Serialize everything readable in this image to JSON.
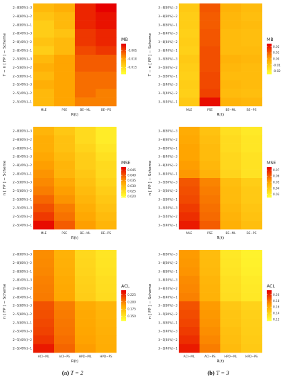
{
  "captions": [
    {
      "label": "(a)",
      "text": "T = 2"
    },
    {
      "label": "(b)",
      "text": "T = 3"
    }
  ],
  "colors": {
    "low": "#ffff33",
    "mid": "#ffa500",
    "high": "#e60000",
    "grid": "#ffffff"
  },
  "chart_data": [
    {
      "type": "heatmap",
      "panel": "a-MB",
      "legend_title": "MB",
      "xlabel": "R(t)",
      "ylabel": "T − n [ FP ] − Scheme",
      "x": [
        "MLE",
        "PSE",
        "BE−ML",
        "BE−PS"
      ],
      "y": [
        "2−8[80%]−3",
        "2−8[80%]−2",
        "2−8[80%]−1",
        "2−8[40%]−3",
        "2−8[40%]−2",
        "2−8[40%]−1",
        "2−5[80%]−3",
        "2−5[80%]−2",
        "2−5[80%]−1",
        "2−5[40%]−3",
        "2−5[40%]−2",
        "2−5[40%]−1"
      ],
      "legend_ticks": [
        -0.005,
        -0.01,
        -0.015
      ],
      "legend_tick_labels": [
        "-0.005",
        "-0.010",
        "-0.015"
      ],
      "range": [
        -0.019,
        -0.001
      ],
      "values": [
        [
          -0.012,
          -0.011,
          -0.003,
          -0.001
        ],
        [
          -0.013,
          -0.012,
          -0.003,
          -0.002
        ],
        [
          -0.014,
          -0.012,
          -0.003,
          -0.002
        ],
        [
          -0.014,
          -0.013,
          -0.004,
          -0.003
        ],
        [
          -0.013,
          -0.012,
          -0.004,
          -0.003
        ],
        [
          -0.014,
          -0.012,
          -0.005,
          -0.004
        ],
        [
          -0.012,
          -0.01,
          -0.006,
          -0.006
        ],
        [
          -0.011,
          -0.01,
          -0.006,
          -0.006
        ],
        [
          -0.012,
          -0.01,
          -0.007,
          -0.007
        ],
        [
          -0.011,
          -0.01,
          -0.007,
          -0.007
        ],
        [
          -0.012,
          -0.01,
          -0.007,
          -0.008
        ],
        [
          -0.012,
          -0.01,
          -0.008,
          -0.008
        ]
      ]
    },
    {
      "type": "heatmap",
      "panel": "b-MB",
      "legend_title": "MB",
      "xlabel": "R(t)",
      "ylabel": "T − n [ FP ] − Scheme",
      "x": [
        "MLE",
        "PSE",
        "BE−ML",
        "BE−PS"
      ],
      "y": [
        "3−8[80%]−3",
        "3−8[80%]−2",
        "3−8[80%]−1",
        "3−8[40%]−3",
        "3−8[40%]−2",
        "3−8[40%]−1",
        "3−5[80%]−3",
        "3−5[80%]−2",
        "3−5[80%]−1",
        "3−5[40%]−3",
        "3−5[40%]−2",
        "3−5[40%]−1"
      ],
      "legend_ticks": [
        0.02,
        0.01,
        0.0,
        -0.01,
        -0.02
      ],
      "legend_tick_labels": [
        "0.02",
        "0.01",
        "0.00",
        "-0.01",
        "-0.02"
      ],
      "range": [
        -0.025,
        0.025
      ],
      "values": [
        [
          -0.01,
          0.012,
          -0.004,
          -0.006
        ],
        [
          -0.011,
          0.011,
          -0.005,
          -0.007
        ],
        [
          -0.011,
          0.011,
          -0.005,
          -0.006
        ],
        [
          -0.012,
          0.012,
          -0.006,
          -0.007
        ],
        [
          -0.011,
          0.012,
          -0.006,
          -0.007
        ],
        [
          -0.012,
          0.013,
          -0.006,
          -0.006
        ],
        [
          -0.01,
          0.013,
          -0.004,
          -0.005
        ],
        [
          -0.011,
          0.013,
          -0.005,
          -0.006
        ],
        [
          -0.012,
          0.014,
          -0.006,
          -0.006
        ],
        [
          -0.011,
          0.014,
          -0.005,
          -0.006
        ],
        [
          -0.012,
          0.015,
          -0.006,
          -0.007
        ],
        [
          -0.01,
          0.023,
          -0.004,
          -0.005
        ]
      ]
    },
    {
      "type": "heatmap",
      "panel": "a-MSE",
      "legend_title": "MSE",
      "xlabel": "R(t)",
      "ylabel": "n [ FP ] − Scheme",
      "x": [
        "MLE",
        "PSE",
        "BE−ML",
        "BE−PS"
      ],
      "y": [
        "2−8[80%]−3",
        "2−8[80%]−2",
        "2−8[80%]−1",
        "2−8[40%]−3",
        "2−8[40%]−2",
        "2−8[40%]−1",
        "2−5[80%]−3",
        "2−5[80%]−2",
        "2−5[80%]−1",
        "2−5[40%]−3",
        "2−5[40%]−2",
        "2−5[40%]−1"
      ],
      "legend_ticks": [
        0.045,
        0.04,
        0.035,
        0.03,
        0.025,
        0.02
      ],
      "legend_tick_labels": [
        "0.045",
        "0.040",
        "0.035",
        "0.030",
        "0.025",
        "0.020"
      ],
      "range": [
        0.019,
        0.048
      ],
      "values": [
        [
          0.031,
          0.028,
          0.025,
          0.022
        ],
        [
          0.032,
          0.029,
          0.025,
          0.022
        ],
        [
          0.032,
          0.029,
          0.026,
          0.023
        ],
        [
          0.033,
          0.03,
          0.027,
          0.024
        ],
        [
          0.034,
          0.031,
          0.027,
          0.025
        ],
        [
          0.035,
          0.031,
          0.028,
          0.025
        ],
        [
          0.036,
          0.033,
          0.029,
          0.026
        ],
        [
          0.037,
          0.034,
          0.03,
          0.027
        ],
        [
          0.039,
          0.035,
          0.031,
          0.028
        ],
        [
          0.041,
          0.037,
          0.032,
          0.029
        ],
        [
          0.043,
          0.038,
          0.033,
          0.03
        ],
        [
          0.047,
          0.04,
          0.034,
          0.031
        ]
      ]
    },
    {
      "type": "heatmap",
      "panel": "b-MSE",
      "legend_title": "MSE",
      "xlabel": "R(t)",
      "ylabel": "n [ FP ] − Scheme",
      "x": [
        "MLE",
        "PSE",
        "BE−ML",
        "BE−PS"
      ],
      "y": [
        "3−8[80%]−3",
        "3−8[80%]−2",
        "3−8[80%]−1",
        "3−8[40%]−3",
        "3−8[40%]−2",
        "3−8[40%]−1",
        "3−5[80%]−3",
        "3−5[80%]−2",
        "3−5[80%]−1",
        "3−5[40%]−3",
        "3−5[40%]−2",
        "3−5[40%]−1"
      ],
      "legend_ticks": [
        0.07,
        0.06,
        0.05,
        0.04,
        0.03
      ],
      "legend_tick_labels": [
        "0.07",
        "0.06",
        "0.05",
        "0.04",
        "0.03"
      ],
      "range": [
        0.025,
        0.075
      ],
      "values": [
        [
          0.048,
          0.042,
          0.034,
          0.031
        ],
        [
          0.049,
          0.043,
          0.035,
          0.032
        ],
        [
          0.05,
          0.044,
          0.035,
          0.032
        ],
        [
          0.05,
          0.044,
          0.036,
          0.033
        ],
        [
          0.051,
          0.045,
          0.036,
          0.033
        ],
        [
          0.052,
          0.046,
          0.037,
          0.033
        ],
        [
          0.062,
          0.055,
          0.043,
          0.039
        ],
        [
          0.063,
          0.056,
          0.044,
          0.04
        ],
        [
          0.064,
          0.057,
          0.044,
          0.04
        ],
        [
          0.066,
          0.058,
          0.045,
          0.041
        ],
        [
          0.068,
          0.059,
          0.046,
          0.042
        ],
        [
          0.071,
          0.061,
          0.047,
          0.043
        ]
      ]
    },
    {
      "type": "heatmap",
      "panel": "a-ACL",
      "legend_title": "ACL",
      "xlabel": "R(t)",
      "ylabel": "n [ FP ] − Scheme",
      "x": [
        "ACI−ML",
        "ACI−PS",
        "HPD−ML",
        "HPD−PS"
      ],
      "y": [
        "2−8[80%]−3",
        "2−8[80%]−2",
        "2−8[80%]−1",
        "2−8[40%]−3",
        "2−8[40%]−2",
        "2−8[40%]−1",
        "2−5[80%]−3",
        "2−5[80%]−2",
        "2−5[80%]−1",
        "2−5[40%]−3",
        "2−5[40%]−2",
        "2−5[40%]−1"
      ],
      "legend_ticks": [
        0.225,
        0.2,
        0.175,
        0.15
      ],
      "legend_tick_labels": [
        "0.225",
        "0.200",
        "0.175",
        "0.150"
      ],
      "range": [
        0.135,
        0.24
      ],
      "values": [
        [
          0.195,
          0.18,
          0.158,
          0.15
        ],
        [
          0.196,
          0.181,
          0.159,
          0.151
        ],
        [
          0.197,
          0.182,
          0.16,
          0.152
        ],
        [
          0.199,
          0.184,
          0.162,
          0.154
        ],
        [
          0.2,
          0.185,
          0.163,
          0.155
        ],
        [
          0.201,
          0.186,
          0.164,
          0.156
        ],
        [
          0.214,
          0.2,
          0.184,
          0.178
        ],
        [
          0.215,
          0.201,
          0.185,
          0.179
        ],
        [
          0.217,
          0.202,
          0.186,
          0.18
        ],
        [
          0.219,
          0.203,
          0.187,
          0.181
        ],
        [
          0.223,
          0.205,
          0.188,
          0.182
        ],
        [
          0.232,
          0.208,
          0.19,
          0.183
        ]
      ]
    },
    {
      "type": "heatmap",
      "panel": "b-ACL",
      "legend_title": "ACL",
      "xlabel": "R(t)",
      "ylabel": "n [ FP ] − Scheme",
      "x": [
        "ACI−ML",
        "ACI−PS",
        "HPD−ML",
        "HPD−PS"
      ],
      "y": [
        "3−8[80%]−3",
        "3−8[80%]−2",
        "3−8[80%]−1",
        "3−8[40%]−3",
        "3−8[40%]−2",
        "3−8[40%]−1",
        "3−5[80%]−3",
        "3−5[80%]−2",
        "3−5[80%]−1",
        "3−5[40%]−3",
        "3−5[40%]−2",
        "3−5[40%]−1"
      ],
      "legend_ticks": [
        0.2,
        0.18,
        0.16,
        0.14,
        0.12
      ],
      "legend_tick_labels": [
        "0.20",
        "0.18",
        "0.16",
        "0.14",
        "0.12"
      ],
      "range": [
        0.115,
        0.215
      ],
      "values": [
        [
          0.168,
          0.152,
          0.128,
          0.122
        ],
        [
          0.169,
          0.153,
          0.129,
          0.123
        ],
        [
          0.17,
          0.154,
          0.13,
          0.124
        ],
        [
          0.173,
          0.156,
          0.132,
          0.126
        ],
        [
          0.174,
          0.157,
          0.133,
          0.127
        ],
        [
          0.176,
          0.158,
          0.134,
          0.128
        ],
        [
          0.19,
          0.168,
          0.146,
          0.14
        ],
        [
          0.192,
          0.169,
          0.147,
          0.141
        ],
        [
          0.194,
          0.17,
          0.148,
          0.142
        ],
        [
          0.197,
          0.172,
          0.15,
          0.143
        ],
        [
          0.201,
          0.174,
          0.151,
          0.144
        ],
        [
          0.207,
          0.177,
          0.153,
          0.145
        ]
      ]
    }
  ]
}
